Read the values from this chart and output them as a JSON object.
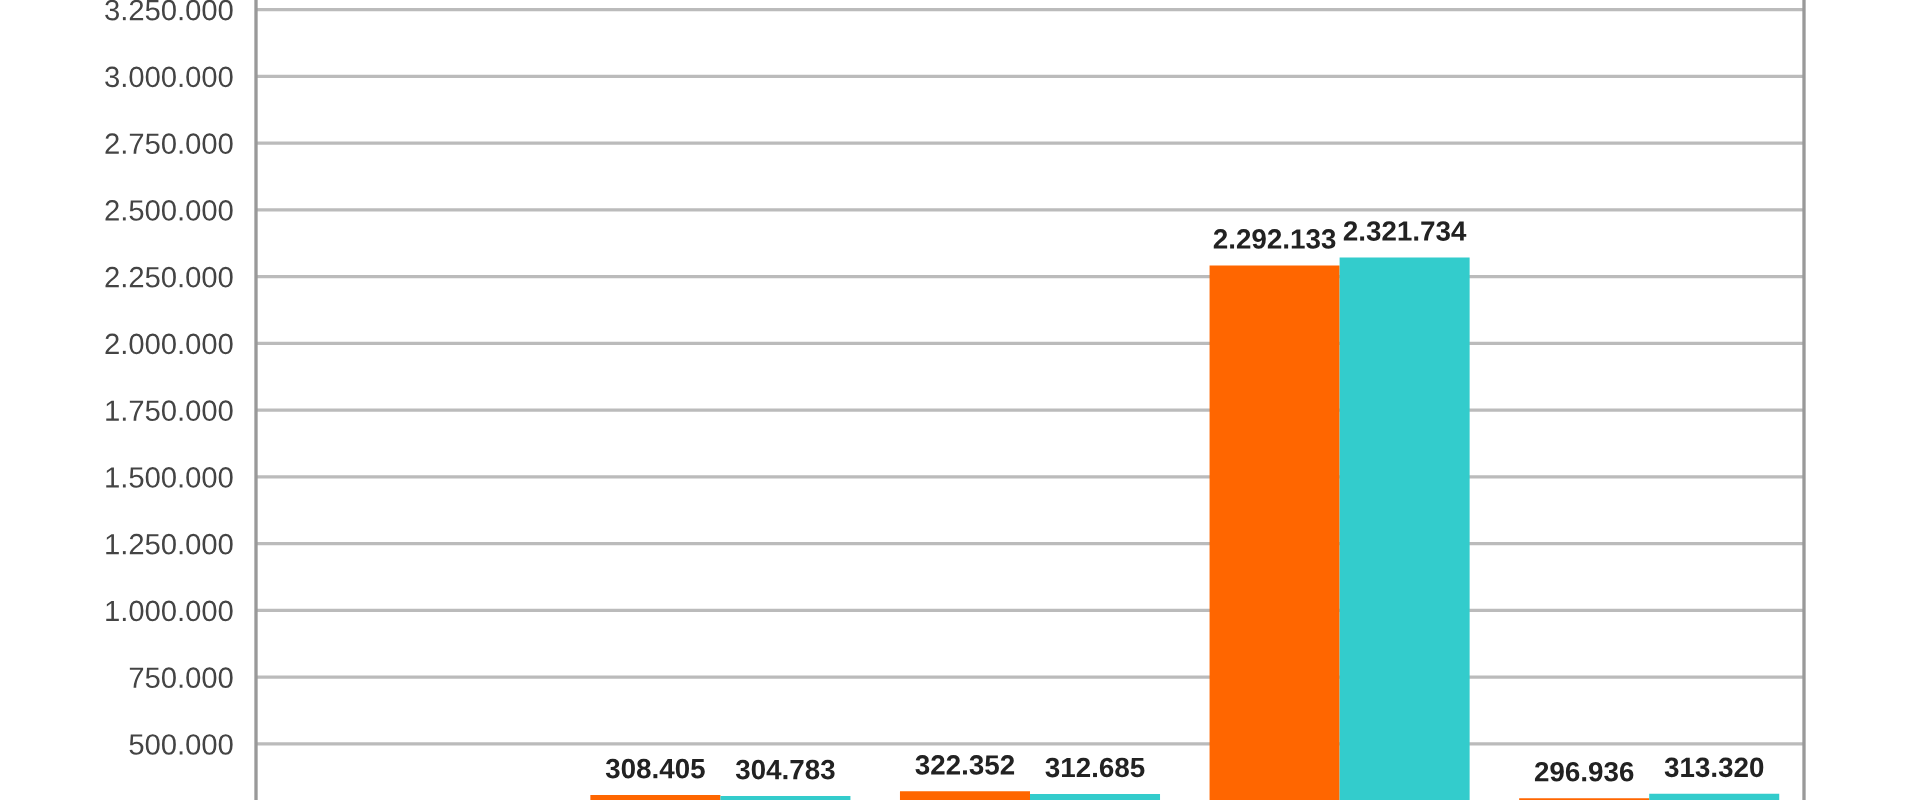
{
  "chart_data": {
    "type": "bar",
    "categories": [
      null,
      null,
      null,
      null,
      null
    ],
    "series": [
      {
        "color": "#ff6600",
        "values": [
          null,
          308405,
          322352,
          2292133,
          296936
        ],
        "value_labels": [
          null,
          "308.405",
          "322.352",
          "2.292.133",
          "296.936"
        ]
      },
      {
        "color": "#33cccc",
        "values": [
          null,
          304783,
          312685,
          2321734,
          313320
        ],
        "value_labels": [
          null,
          "304.783",
          "312.685",
          "2.321.734",
          "313.320"
        ]
      }
    ],
    "ylim": [
      290000,
      3286000
    ],
    "yticks": [
      {
        "value": 500000,
        "label": "500.000"
      },
      {
        "value": 750000,
        "label": "750.000"
      },
      {
        "value": 1000000,
        "label": "1.000.000"
      },
      {
        "value": 1250000,
        "label": "1.250.000"
      },
      {
        "value": 1500000,
        "label": "1.500.000"
      },
      {
        "value": 1750000,
        "label": "1.750.000"
      },
      {
        "value": 2000000,
        "label": "2.000.000"
      },
      {
        "value": 2250000,
        "label": "2.250.000"
      },
      {
        "value": 2500000,
        "label": "2.500.000"
      },
      {
        "value": 2750000,
        "label": "2.750.000"
      },
      {
        "value": 3000000,
        "label": "3.000.000"
      },
      {
        "value": 3250000,
        "label": "3.250.000"
      }
    ],
    "grid": "y",
    "tick_labels": "y"
  }
}
